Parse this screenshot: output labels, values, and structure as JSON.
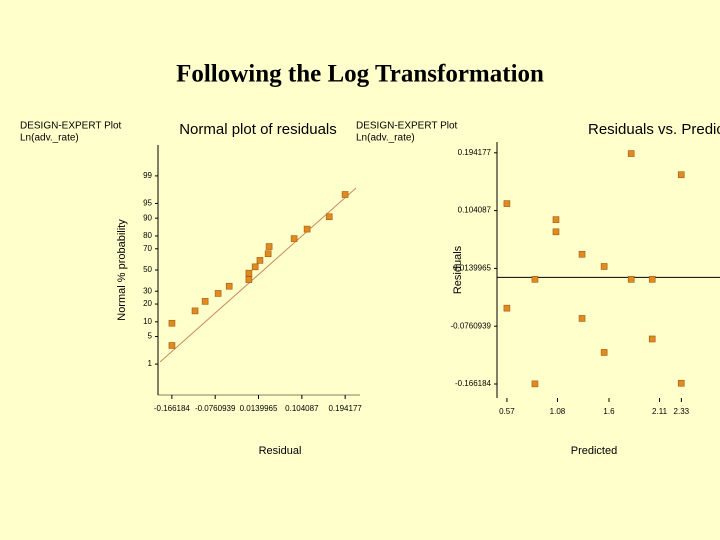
{
  "title": "Following the Log Transformation",
  "chart_data": [
    {
      "type": "scatter",
      "title": "Normal plot of residuals",
      "note": [
        "DESIGN-EXPERT Plot",
        "Ln(adv._rate)"
      ],
      "x_label": "Residual",
      "y_label": "Normal % probability",
      "yscale": "normal-probability",
      "x": [
        -0.166,
        -0.166,
        -0.118,
        -0.097,
        -0.07,
        -0.047,
        -0.006,
        -0.006,
        0.007,
        0.017,
        0.034,
        0.036,
        0.088,
        0.115,
        0.161,
        0.194
      ],
      "values": [
        3.1,
        9.4,
        15.6,
        21.9,
        28.1,
        34.4,
        40.6,
        46.9,
        53.1,
        59.4,
        65.6,
        71.9,
        78.1,
        84.4,
        90.6,
        96.9
      ],
      "color": "#e08a20",
      "xlim": [
        -0.195,
        0.225
      ],
      "ylim": [
        0.1,
        99.9
      ],
      "xticks": [
        -0.166184,
        -0.0760939,
        0.0139965,
        0.104087,
        0.194177
      ],
      "yticks": [
        1,
        5,
        10,
        20,
        30,
        50,
        70,
        80,
        90,
        95,
        99
      ]
    },
    {
      "type": "scatter",
      "title": "Residuals vs. Predicted",
      "note": [
        "DESIGN-EXPERT Plot",
        "Ln(adv._rate)"
      ],
      "x_label": "Predicted",
      "y_label": "Residuals",
      "x": [
        0.57,
        0.57,
        0.853,
        0.853,
        1.065,
        1.065,
        1.328,
        1.328,
        1.551,
        1.551,
        1.824,
        1.824,
        2.036,
        2.036,
        2.329,
        2.329
      ],
      "values": [
        0.115,
        -0.048,
        -0.003,
        -0.166,
        0.09,
        0.071,
        0.036,
        -0.064,
        0.017,
        -0.117,
        0.193,
        -0.003,
        -0.003,
        -0.096,
        0.16,
        -0.165
      ],
      "color": "#e08a20",
      "xlim": [
        0.47,
        2.72
      ],
      "ylim": [
        -0.188,
        0.211
      ],
      "xticks": [
        0.57,
        1.08,
        1.6,
        2.11,
        2.33
      ],
      "yticks": [
        -0.166184,
        -0.0760939,
        0.0139965,
        0.104087,
        0.194177
      ]
    }
  ]
}
